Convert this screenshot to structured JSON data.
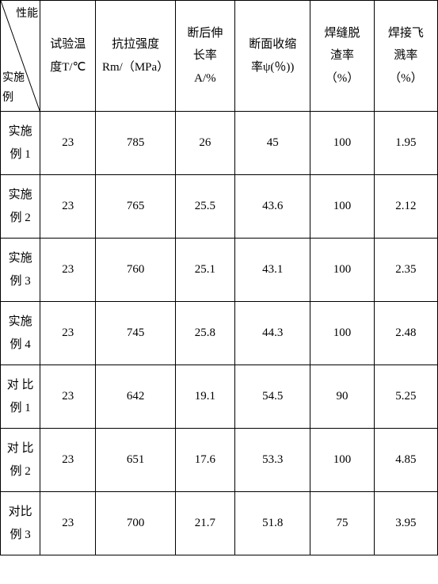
{
  "table": {
    "diag": {
      "top": "性能",
      "bottom": "实施\n例"
    },
    "columns": [
      {
        "label": "试验温\n度T/℃"
      },
      {
        "label": "抗拉强度\nRm/（MPa）"
      },
      {
        "label": "断后伸\n长率\nA/%"
      },
      {
        "label": "断面收缩\n率ψ(％))"
      },
      {
        "label": "焊缝脱\n渣率\n（%）"
      },
      {
        "label": "焊接飞\n溅率\n（%）"
      }
    ],
    "rows": [
      {
        "label": "实施\n例 1",
        "temp": "23",
        "rm": "785",
        "elong": "26",
        "psi": "45",
        "slag": "100",
        "spatter": "1.95"
      },
      {
        "label": "实施\n例 2",
        "temp": "23",
        "rm": "765",
        "elong": "25.5",
        "psi": "43.6",
        "slag": "100",
        "spatter": "2.12"
      },
      {
        "label": "实施\n例 3",
        "temp": "23",
        "rm": "760",
        "elong": "25.1",
        "psi": "43.1",
        "slag": "100",
        "spatter": "2.35"
      },
      {
        "label": "实施\n例 4",
        "temp": "23",
        "rm": "745",
        "elong": "25.8",
        "psi": "44.3",
        "slag": "100",
        "spatter": "2.48"
      },
      {
        "label": "对 比\n例 1",
        "temp": "23",
        "rm": "642",
        "elong": "19.1",
        "psi": "54.5",
        "slag": "90",
        "spatter": "5.25"
      },
      {
        "label": "对 比\n例 2",
        "temp": "23",
        "rm": "651",
        "elong": "17.6",
        "psi": "53.3",
        "slag": "100",
        "spatter": "4.85"
      },
      {
        "label": "对比\n例 3",
        "temp": "23",
        "rm": "700",
        "elong": "21.7",
        "psi": "51.8",
        "slag": "75",
        "spatter": "3.95"
      }
    ]
  }
}
